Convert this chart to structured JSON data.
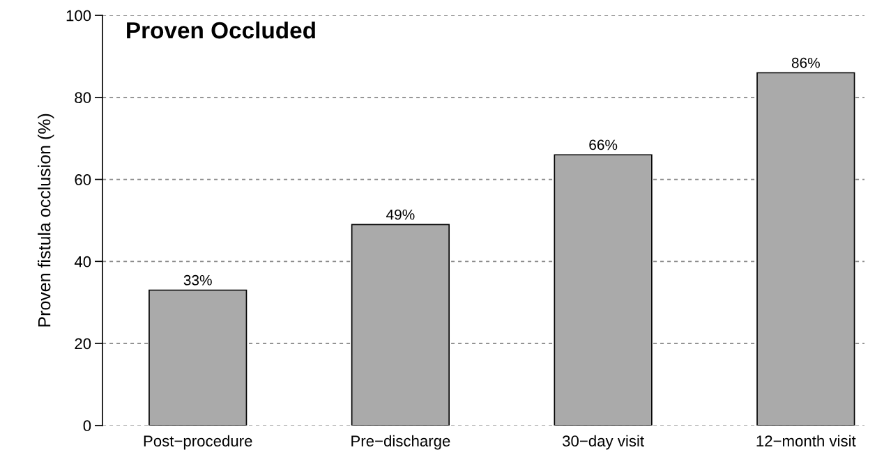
{
  "chart_data": {
    "type": "bar",
    "title": "Proven Occluded",
    "ylabel": "Proven fistula occlusion (%)",
    "categories": [
      "Post−procedure",
      "Pre−discharge",
      "30−day visit",
      "12−month visit"
    ],
    "values": [
      33,
      49,
      66,
      86
    ],
    "value_labels": [
      "33%",
      "49%",
      "66%",
      "86%"
    ],
    "color": "#aaaaaa",
    "ylim": [
      0,
      100
    ],
    "yticks": [
      0,
      20,
      40,
      60,
      80,
      100
    ],
    "grid": "y"
  }
}
